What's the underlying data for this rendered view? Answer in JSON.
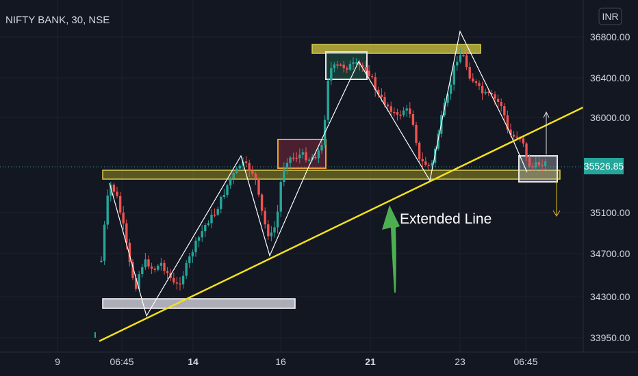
{
  "header": {
    "symbol_title": "NIFTY BANK, 30, NSE",
    "currency": "INR"
  },
  "price_axis": {
    "ticks": [
      "36800.00",
      "36400.00",
      "36000.00",
      "35100.00",
      "34700.00",
      "34300.00",
      "33950.00"
    ],
    "current_price": "35526.85"
  },
  "time_axis": {
    "ticks": [
      {
        "label": "9",
        "bold": false
      },
      {
        "label": "06:45",
        "bold": false
      },
      {
        "label": "14",
        "bold": true
      },
      {
        "label": "16",
        "bold": false
      },
      {
        "label": "21",
        "bold": true
      },
      {
        "label": "23",
        "bold": false
      },
      {
        "label": "06:45",
        "bold": false
      }
    ]
  },
  "annotation": {
    "text": "Extended Line"
  },
  "colors": {
    "background": "#131722",
    "up": "#26a69a",
    "down": "#ef5350",
    "trendline": "#f5e11b",
    "zone_yellow": "#d4cf4f",
    "zone_orange": "#f0a030",
    "price_tag": "#26a69a",
    "arrow_green": "#4caf50",
    "zigzag": "#ffffff"
  },
  "chart_data": {
    "type": "candlestick",
    "title": "NIFTY BANK, 30, NSE",
    "y_axis_ticks": [
      36800,
      36400,
      36000,
      35100,
      34700,
      34300,
      33950
    ],
    "current_price": 35526.85,
    "x_axis_ticks": [
      "9",
      "06:45",
      "14",
      "16",
      "21",
      "23",
      "06:45"
    ]
  }
}
